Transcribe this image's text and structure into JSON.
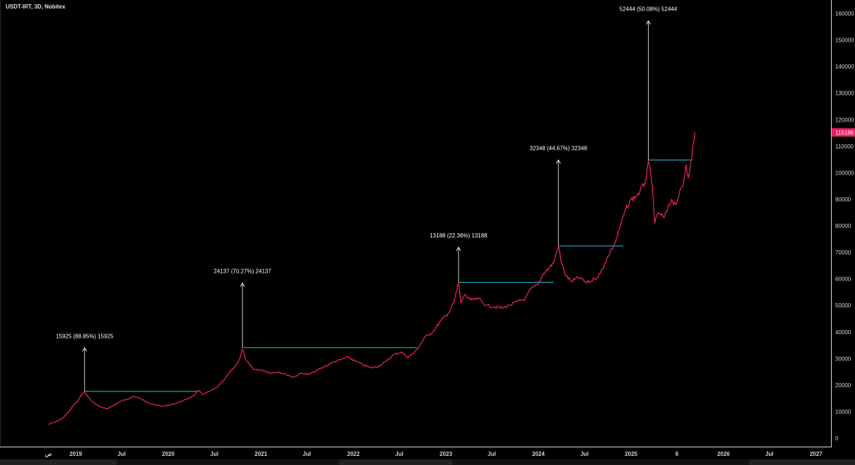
{
  "header": {
    "title": "USDT-IRT, 3D, Nobitex"
  },
  "colors": {
    "line": "#e91e63",
    "horizontal": "#26c6da",
    "arrow": "#ffffff",
    "price_label_bg": "#e91e63"
  },
  "chart_data": {
    "type": "line",
    "title": "USDT-IRT, 3D, Nobitex",
    "ylim": [
      0,
      160000
    ],
    "xlim": [
      "2018-03-08",
      "2027-03-01"
    ],
    "y_ticks": [
      0,
      10000,
      20000,
      30000,
      40000,
      50000,
      60000,
      70000,
      80000,
      90000,
      100000,
      110000,
      120000,
      130000,
      140000,
      150000,
      160000
    ],
    "y_tick_labels": [
      "0",
      "10000",
      "20000",
      "30000",
      "40000",
      "50000",
      "60000",
      "70000",
      "80000",
      "90000",
      "100000",
      "110000",
      "120000",
      "130000",
      "140000",
      "150000",
      "160000"
    ],
    "x_ticks": [
      {
        "label": "ص",
        "date": "2018-09-15"
      },
      {
        "label": "2019",
        "date": "2019-01-01"
      },
      {
        "label": "Jul",
        "date": "2019-07-01"
      },
      {
        "label": "2020",
        "date": "2020-01-01"
      },
      {
        "label": "Jul",
        "date": "2020-07-01"
      },
      {
        "label": "2021",
        "date": "2021-01-01"
      },
      {
        "label": "Jul",
        "date": "2021-07-01"
      },
      {
        "label": "2022",
        "date": "2022-01-01"
      },
      {
        "label": "Jul",
        "date": "2022-07-01"
      },
      {
        "label": "2023",
        "date": "2023-01-01"
      },
      {
        "label": "Jul",
        "date": "2023-07-01"
      },
      {
        "label": "2024",
        "date": "2024-01-01"
      },
      {
        "label": "Jul",
        "date": "2024-07-01"
      },
      {
        "label": "2025",
        "date": "2025-01-01"
      },
      {
        "label": "6",
        "date": "2025-07-01"
      },
      {
        "label": "2026",
        "date": "2026-01-01"
      },
      {
        "label": "Jul",
        "date": "2026-07-01"
      },
      {
        "label": "2027",
        "date": "2027-01-01"
      }
    ],
    "current_price_label": "115186",
    "series": [
      {
        "values": [
          [
            "2018-09-15",
            5200
          ],
          [
            "2018-10-10",
            6000
          ],
          [
            "2018-11-05",
            7200
          ],
          [
            "2018-12-01",
            9500
          ],
          [
            "2018-12-20",
            12000
          ],
          [
            "2019-01-08",
            14000
          ],
          [
            "2019-01-25",
            16500
          ],
          [
            "2019-02-05",
            17500
          ],
          [
            "2019-02-15",
            16000
          ],
          [
            "2019-03-05",
            14000
          ],
          [
            "2019-03-25",
            12500
          ],
          [
            "2019-04-15",
            11500
          ],
          [
            "2019-05-05",
            11000
          ],
          [
            "2019-06-01",
            12500
          ],
          [
            "2019-07-01",
            14000
          ],
          [
            "2019-08-01",
            15000
          ],
          [
            "2019-08-20",
            15800
          ],
          [
            "2019-09-10",
            15000
          ],
          [
            "2019-10-10",
            13500
          ],
          [
            "2019-11-10",
            12500
          ],
          [
            "2019-12-10",
            12000
          ],
          [
            "2020-01-10",
            12500
          ],
          [
            "2020-02-10",
            13500
          ],
          [
            "2020-03-10",
            14500
          ],
          [
            "2020-04-10",
            16000
          ],
          [
            "2020-05-01",
            18000
          ],
          [
            "2020-05-15",
            16500
          ],
          [
            "2020-06-10",
            17500
          ],
          [
            "2020-07-10",
            19000
          ],
          [
            "2020-08-10",
            22000
          ],
          [
            "2020-09-01",
            25000
          ],
          [
            "2020-09-20",
            27000
          ],
          [
            "2020-10-10",
            30000
          ],
          [
            "2020-10-20",
            33500
          ],
          [
            "2020-11-05",
            29000
          ],
          [
            "2020-12-01",
            26000
          ],
          [
            "2021-01-10",
            25500
          ],
          [
            "2021-02-10",
            24500
          ],
          [
            "2021-03-10",
            25000
          ],
          [
            "2021-04-10",
            24000
          ],
          [
            "2021-05-10",
            23000
          ],
          [
            "2021-06-10",
            24500
          ],
          [
            "2021-07-10",
            24000
          ],
          [
            "2021-08-10",
            25500
          ],
          [
            "2021-09-10",
            27000
          ],
          [
            "2021-10-10",
            28500
          ],
          [
            "2021-11-10",
            29500
          ],
          [
            "2021-12-10",
            30500
          ],
          [
            "2022-01-10",
            29000
          ],
          [
            "2022-02-10",
            27500
          ],
          [
            "2022-03-10",
            26500
          ],
          [
            "2022-04-10",
            27000
          ],
          [
            "2022-05-10",
            29000
          ],
          [
            "2022-06-10",
            31500
          ],
          [
            "2022-07-10",
            32500
          ],
          [
            "2022-08-01",
            30500
          ],
          [
            "2022-08-20",
            31500
          ],
          [
            "2022-09-10",
            33500
          ],
          [
            "2022-10-10",
            38000
          ],
          [
            "2022-11-10",
            40000
          ],
          [
            "2022-12-10",
            44000
          ],
          [
            "2023-01-10",
            47000
          ],
          [
            "2023-02-01",
            51000
          ],
          [
            "2023-02-20",
            58500
          ],
          [
            "2023-03-01",
            51000
          ],
          [
            "2023-03-15",
            54000
          ],
          [
            "2023-04-10",
            52000
          ],
          [
            "2023-05-10",
            52500
          ],
          [
            "2023-06-10",
            50000
          ],
          [
            "2023-07-10",
            49500
          ],
          [
            "2023-08-10",
            49000
          ],
          [
            "2023-09-10",
            50000
          ],
          [
            "2023-10-10",
            51500
          ],
          [
            "2023-11-10",
            52500
          ],
          [
            "2023-12-01",
            56000
          ],
          [
            "2024-01-01",
            58000
          ],
          [
            "2024-01-20",
            62000
          ],
          [
            "2024-02-10",
            64000
          ],
          [
            "2024-03-01",
            66000
          ],
          [
            "2024-03-20",
            72500
          ],
          [
            "2024-04-01",
            66000
          ],
          [
            "2024-04-20",
            61000
          ],
          [
            "2024-05-10",
            59000
          ],
          [
            "2024-06-10",
            60500
          ],
          [
            "2024-07-10",
            58500
          ],
          [
            "2024-08-10",
            60000
          ],
          [
            "2024-09-01",
            62000
          ],
          [
            "2024-09-20",
            66000
          ],
          [
            "2024-10-10",
            70000
          ],
          [
            "2024-11-01",
            74000
          ],
          [
            "2024-11-20",
            80000
          ],
          [
            "2024-12-10",
            86000
          ],
          [
            "2025-01-01",
            90000
          ],
          [
            "2025-01-20",
            91000
          ],
          [
            "2025-02-05",
            93000
          ],
          [
            "2025-02-25",
            96000
          ],
          [
            "2025-03-10",
            104500
          ],
          [
            "2025-03-25",
            95000
          ],
          [
            "2025-04-05",
            81000
          ],
          [
            "2025-04-20",
            85000
          ],
          [
            "2025-05-10",
            83000
          ],
          [
            "2025-05-25",
            86000
          ],
          [
            "2025-06-10",
            90000
          ],
          [
            "2025-06-25",
            88000
          ],
          [
            "2025-07-10",
            92000
          ],
          [
            "2025-07-25",
            95000
          ],
          [
            "2025-08-05",
            103000
          ],
          [
            "2025-08-15",
            98000
          ],
          [
            "2025-08-25",
            104000
          ],
          [
            "2025-09-01",
            110000
          ],
          [
            "2025-09-10",
            115186
          ]
        ]
      }
    ],
    "annotations": [
      {
        "label": "15925 (88.85%) 15925",
        "start_date": "2019-02-05",
        "end_date": "2020-05-01",
        "base": 17600,
        "top": 34000
      },
      {
        "label": "24137 (70.27%) 24137",
        "start_date": "2020-10-20",
        "end_date": "2022-09-10",
        "base": 34100,
        "top": 58400
      },
      {
        "label": "13188 (22.36%) 13188",
        "start_date": "2023-02-20",
        "end_date": "2024-03-01",
        "base": 58700,
        "top": 71900
      },
      {
        "label": "32348 (44.67%) 32348",
        "start_date": "2024-03-20",
        "end_date": "2024-12-01",
        "base": 72400,
        "top": 104800
      },
      {
        "label": "52444 (50.08%) 52444",
        "start_date": "2025-03-10",
        "end_date": "2025-08-30",
        "base": 104800,
        "top": 157200
      }
    ]
  }
}
